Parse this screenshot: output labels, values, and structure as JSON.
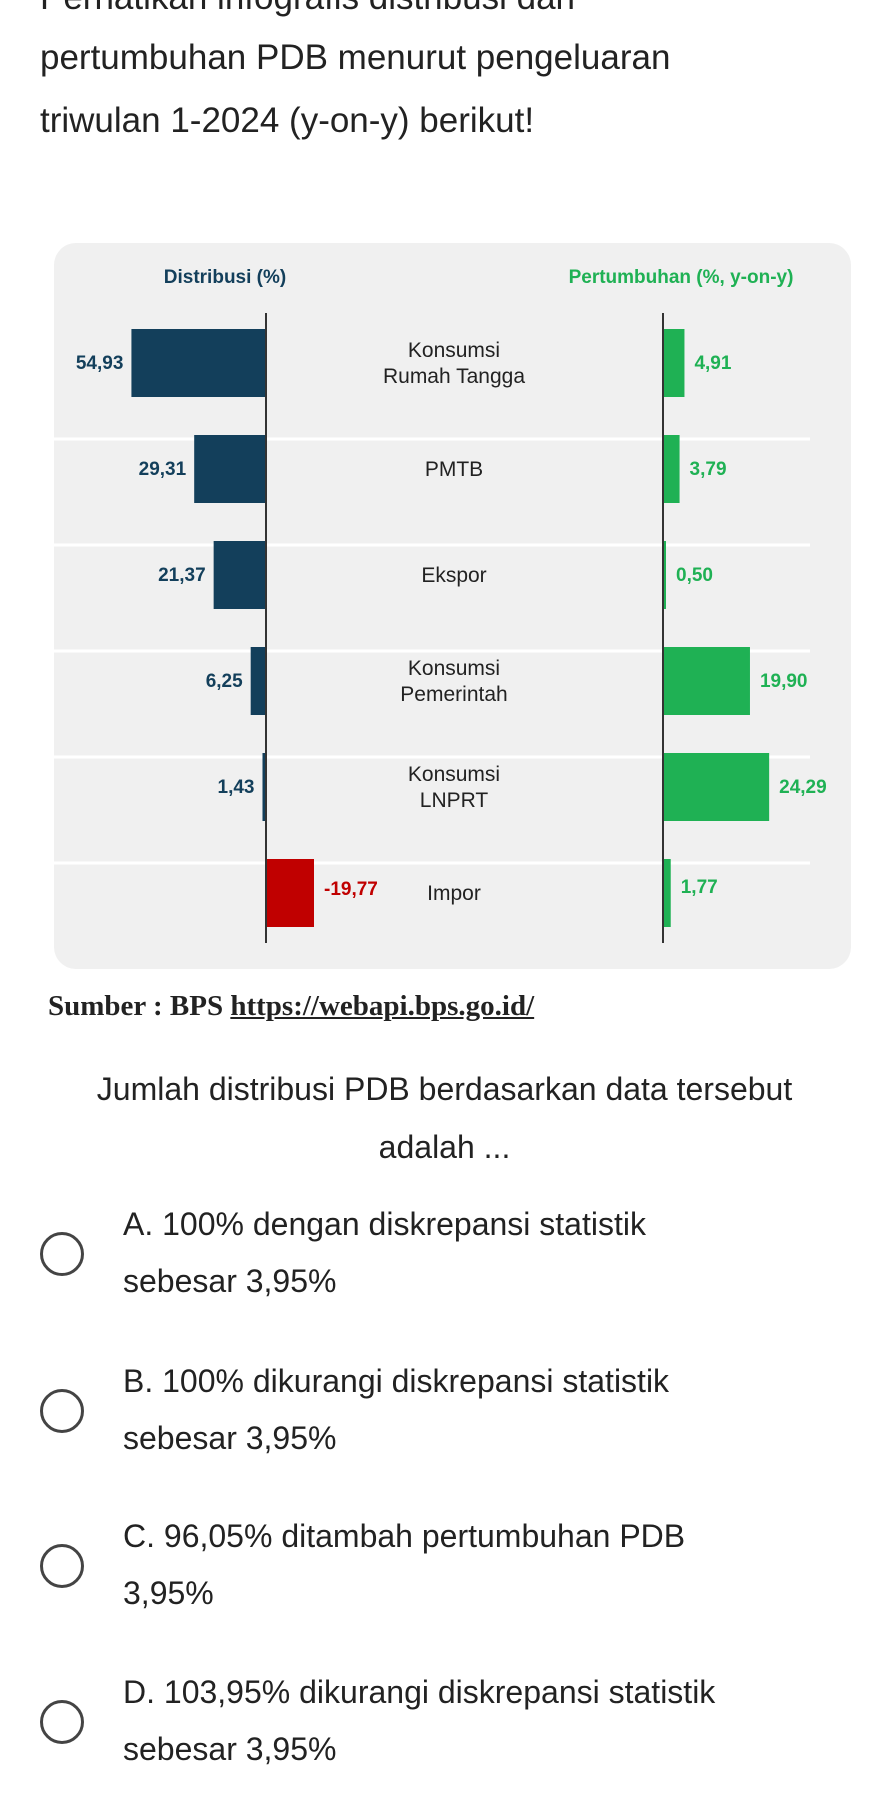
{
  "intro": {
    "line0": "Perhatikan infografis distribusi dan",
    "line1": "pertumbuhan PDB menurut pengeluaran",
    "line2": "triwulan 1-2024 (y-on-y) berikut!"
  },
  "chart_data": {
    "type": "bar",
    "left_title": "Distribusi (%)",
    "right_title": "Pertumbuhan (%, y-on-y)",
    "categories": [
      [
        "Konsumsi",
        "Rumah Tangga"
      ],
      [
        "PMTB"
      ],
      [
        "Ekspor"
      ],
      [
        "Konsumsi",
        "Pemerintah"
      ],
      [
        "Konsumsi",
        "LNPRT"
      ],
      [
        "Impor"
      ]
    ],
    "series": [
      {
        "name": "Distribusi (%)",
        "values": [
          54.93,
          29.31,
          21.37,
          6.25,
          1.43,
          -19.77
        ],
        "labels": [
          "54,93",
          "29,31",
          "21,37",
          "6,25",
          "1,43",
          "-19,77"
        ]
      },
      {
        "name": "Pertumbuhan (%, y-on-y)",
        "values": [
          4.91,
          3.79,
          0.5,
          19.9,
          24.29,
          1.77
        ],
        "labels": [
          "4,91",
          "3,79",
          "0,50",
          "19,90",
          "24,29",
          "1,77"
        ]
      }
    ],
    "colors": {
      "distribution": "#133f5b",
      "negative": "#c00000",
      "growth": "#1fb154",
      "bg": "#f0f0f0"
    }
  },
  "source": {
    "prefix": "Sumber : BPS ",
    "link": "https://webapi.bps.go.id/"
  },
  "question": {
    "line0": "Jumlah distribusi PDB berdasarkan data tersebut",
    "line1": "adalah ..."
  },
  "options": [
    {
      "line0": "A. 100% dengan diskrepansi statistik",
      "line1": "sebesar 3,95%"
    },
    {
      "line0": "B. 100% dikurangi diskrepansi statistik",
      "line1": "sebesar 3,95%"
    },
    {
      "line0": "C. 96,05% ditambah pertumbuhan PDB",
      "line1": "3,95%"
    },
    {
      "line0": "D. 103,95% dikurangi diskrepansi statistik",
      "line1": "sebesar 3,95%"
    }
  ]
}
